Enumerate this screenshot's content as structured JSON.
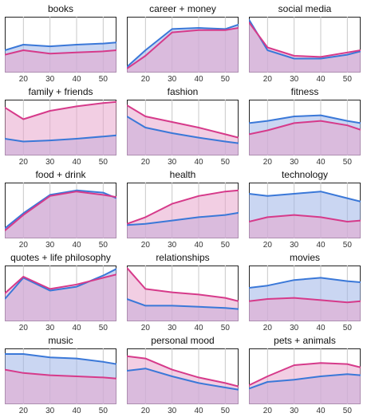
{
  "colors": {
    "male": "#3a78d8",
    "female": "#d63a8a",
    "male_fill": "#9fb5e8",
    "female_fill": "#e8a6cc",
    "overlap_fill": "#b49ad0"
  },
  "chart_data": [
    {
      "type": "area",
      "title": "books",
      "x": [
        13,
        20,
        30,
        40,
        50,
        55
      ],
      "ylim": [
        0,
        1
      ],
      "xlim": [
        13,
        55
      ],
      "xticks": [
        20,
        30,
        40,
        50
      ],
      "series": [
        {
          "values": [
            0.4,
            0.5,
            0.47,
            0.5,
            0.52,
            0.54
          ]
        },
        {
          "values": [
            0.32,
            0.4,
            0.34,
            0.36,
            0.38,
            0.4
          ]
        }
      ]
    },
    {
      "type": "area",
      "title": "career + money",
      "x": [
        13,
        20,
        30,
        40,
        50,
        55
      ],
      "ylim": [
        0,
        1
      ],
      "xlim": [
        13,
        55
      ],
      "xticks": [
        20,
        30,
        40,
        50
      ],
      "series": [
        {
          "values": [
            0.1,
            0.4,
            0.78,
            0.8,
            0.78,
            0.86
          ]
        },
        {
          "values": [
            0.07,
            0.3,
            0.72,
            0.76,
            0.76,
            0.8
          ]
        }
      ]
    },
    {
      "type": "area",
      "title": "social media",
      "x": [
        13,
        20,
        30,
        40,
        50,
        55
      ],
      "ylim": [
        0,
        1
      ],
      "xlim": [
        13,
        55
      ],
      "xticks": [
        20,
        30,
        40,
        50
      ],
      "series": [
        {
          "values": [
            0.95,
            0.4,
            0.25,
            0.25,
            0.32,
            0.38
          ]
        },
        {
          "values": [
            0.9,
            0.45,
            0.3,
            0.28,
            0.36,
            0.4
          ]
        }
      ]
    },
    {
      "type": "area",
      "title": "family + friends",
      "x": [
        13,
        20,
        30,
        40,
        50,
        55
      ],
      "ylim": [
        0,
        1
      ],
      "xlim": [
        13,
        55
      ],
      "xticks": [
        20,
        30,
        40,
        50
      ],
      "series": [
        {
          "values": [
            0.3,
            0.25,
            0.27,
            0.3,
            0.34,
            0.36
          ]
        },
        {
          "values": [
            0.86,
            0.65,
            0.8,
            0.88,
            0.94,
            0.96
          ]
        }
      ]
    },
    {
      "type": "area",
      "title": "fashion",
      "x": [
        13,
        20,
        30,
        40,
        50,
        55
      ],
      "ylim": [
        0,
        1
      ],
      "xlim": [
        13,
        55
      ],
      "xticks": [
        20,
        30,
        40,
        50
      ],
      "series": [
        {
          "values": [
            0.7,
            0.5,
            0.4,
            0.32,
            0.25,
            0.22
          ]
        },
        {
          "values": [
            0.9,
            0.7,
            0.6,
            0.5,
            0.38,
            0.32
          ]
        }
      ]
    },
    {
      "type": "area",
      "title": "fitness",
      "x": [
        13,
        20,
        30,
        40,
        50,
        55
      ],
      "ylim": [
        0,
        1
      ],
      "xlim": [
        13,
        55
      ],
      "xticks": [
        20,
        30,
        40,
        50
      ],
      "series": [
        {
          "values": [
            0.58,
            0.62,
            0.7,
            0.72,
            0.62,
            0.58
          ]
        },
        {
          "values": [
            0.38,
            0.45,
            0.58,
            0.62,
            0.54,
            0.46
          ]
        }
      ]
    },
    {
      "type": "area",
      "title": "food + drink",
      "x": [
        13,
        20,
        30,
        40,
        50,
        55
      ],
      "ylim": [
        0,
        1
      ],
      "xlim": [
        13,
        55
      ],
      "xticks": [
        20,
        30,
        40,
        50
      ],
      "series": [
        {
          "values": [
            0.18,
            0.45,
            0.78,
            0.86,
            0.82,
            0.72
          ]
        },
        {
          "values": [
            0.14,
            0.42,
            0.76,
            0.84,
            0.78,
            0.74
          ]
        }
      ]
    },
    {
      "type": "area",
      "title": "health",
      "x": [
        13,
        20,
        30,
        40,
        50,
        55
      ],
      "ylim": [
        0,
        1
      ],
      "xlim": [
        13,
        55
      ],
      "xticks": [
        20,
        30,
        40,
        50
      ],
      "series": [
        {
          "values": [
            0.24,
            0.26,
            0.32,
            0.38,
            0.42,
            0.46
          ]
        },
        {
          "values": [
            0.26,
            0.38,
            0.62,
            0.76,
            0.84,
            0.86
          ]
        }
      ]
    },
    {
      "type": "area",
      "title": "technology",
      "x": [
        13,
        20,
        30,
        40,
        50,
        55
      ],
      "ylim": [
        0,
        1
      ],
      "xlim": [
        13,
        55
      ],
      "xticks": [
        20,
        30,
        40,
        50
      ],
      "series": [
        {
          "values": [
            0.8,
            0.76,
            0.8,
            0.84,
            0.72,
            0.66
          ]
        },
        {
          "values": [
            0.3,
            0.38,
            0.42,
            0.38,
            0.3,
            0.32
          ]
        }
      ]
    },
    {
      "type": "area",
      "title": "quotes + life philosophy",
      "x": [
        13,
        20,
        30,
        40,
        50,
        55
      ],
      "ylim": [
        0,
        1
      ],
      "xlim": [
        13,
        55
      ],
      "xticks": [
        20,
        30,
        40,
        50
      ],
      "series": [
        {
          "values": [
            0.4,
            0.78,
            0.55,
            0.62,
            0.82,
            0.94
          ]
        },
        {
          "values": [
            0.5,
            0.8,
            0.58,
            0.66,
            0.78,
            0.84
          ]
        }
      ]
    },
    {
      "type": "area",
      "title": "relationships",
      "x": [
        13,
        20,
        30,
        40,
        50,
        55
      ],
      "ylim": [
        0,
        1
      ],
      "xlim": [
        13,
        55
      ],
      "xticks": [
        20,
        30,
        40,
        50
      ],
      "series": [
        {
          "values": [
            0.4,
            0.28,
            0.28,
            0.26,
            0.24,
            0.22
          ]
        },
        {
          "values": [
            0.96,
            0.58,
            0.52,
            0.48,
            0.42,
            0.36
          ]
        }
      ]
    },
    {
      "type": "area",
      "title": "movies",
      "x": [
        13,
        20,
        30,
        40,
        50,
        55
      ],
      "ylim": [
        0,
        1
      ],
      "xlim": [
        13,
        55
      ],
      "xticks": [
        20,
        30,
        40,
        50
      ],
      "series": [
        {
          "values": [
            0.6,
            0.64,
            0.74,
            0.78,
            0.72,
            0.7
          ]
        },
        {
          "values": [
            0.36,
            0.4,
            0.42,
            0.38,
            0.34,
            0.36
          ]
        }
      ]
    },
    {
      "type": "area",
      "title": "music",
      "x": [
        13,
        20,
        30,
        40,
        50,
        55
      ],
      "ylim": [
        0,
        1
      ],
      "xlim": [
        13,
        55
      ],
      "xticks": [
        20,
        30,
        40,
        50
      ],
      "series": [
        {
          "values": [
            0.9,
            0.9,
            0.84,
            0.82,
            0.76,
            0.72
          ]
        },
        {
          "values": [
            0.62,
            0.56,
            0.52,
            0.5,
            0.48,
            0.46
          ]
        }
      ]
    },
    {
      "type": "area",
      "title": "personal mood",
      "x": [
        13,
        20,
        30,
        40,
        50,
        55
      ],
      "ylim": [
        0,
        1
      ],
      "xlim": [
        13,
        55
      ],
      "xticks": [
        20,
        30,
        40,
        50
      ],
      "series": [
        {
          "values": [
            0.6,
            0.64,
            0.5,
            0.38,
            0.3,
            0.26
          ]
        },
        {
          "values": [
            0.86,
            0.82,
            0.62,
            0.48,
            0.38,
            0.32
          ]
        }
      ]
    },
    {
      "type": "area",
      "title": "pets + animals",
      "x": [
        13,
        20,
        30,
        40,
        50,
        55
      ],
      "ylim": [
        0,
        1
      ],
      "xlim": [
        13,
        55
      ],
      "xticks": [
        20,
        30,
        40,
        50
      ],
      "series": [
        {
          "values": [
            0.28,
            0.4,
            0.44,
            0.5,
            0.54,
            0.52
          ]
        },
        {
          "values": [
            0.34,
            0.5,
            0.7,
            0.74,
            0.72,
            0.66
          ]
        }
      ]
    }
  ]
}
